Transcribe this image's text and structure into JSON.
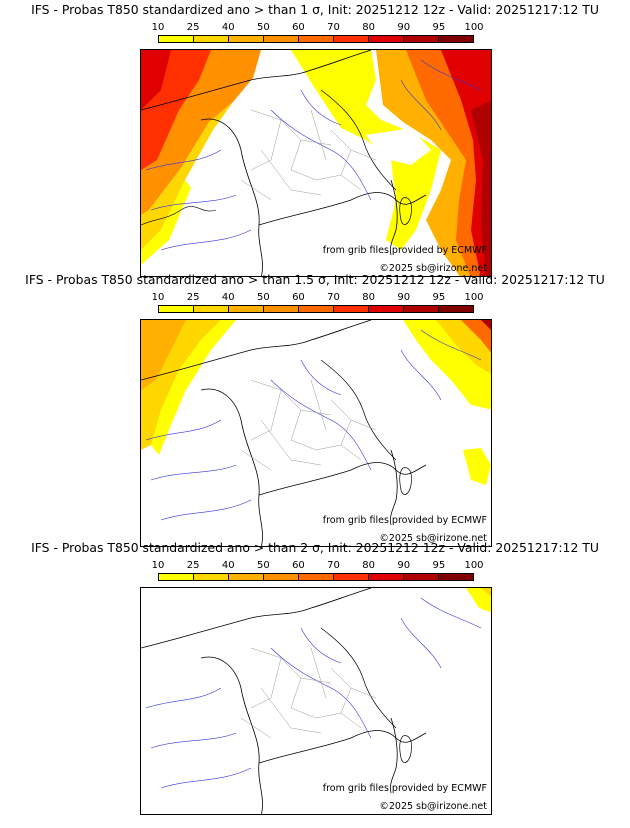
{
  "panels": [
    {
      "title": "IFS - Probas T850  standardized ano > than 1 σ, Init: 20251212 12z - Valid: 20251217:12 TU"
    },
    {
      "title": "IFS - Probas T850  standardized ano > than 1.5 σ, Init: 20251212 12z - Valid: 20251217:12 TU"
    },
    {
      "title": "IFS - Probas T850  standardized ano > than 2 σ, Init: 20251212 12z - Valid: 20251217:12 TU"
    }
  ],
  "colorbar": {
    "labels": [
      "10",
      "25",
      "40",
      "50",
      "60",
      "70",
      "80",
      "90",
      "95",
      "100"
    ],
    "colors": [
      "#ffff00",
      "#ffd700",
      "#ffb000",
      "#ff9000",
      "#ff6a00",
      "#ff3000",
      "#e00000",
      "#b00000",
      "#800000"
    ]
  },
  "credits": {
    "source": "from grib files provided by ECMWF",
    "copyright": "©2025 sb@irizone.net"
  }
}
